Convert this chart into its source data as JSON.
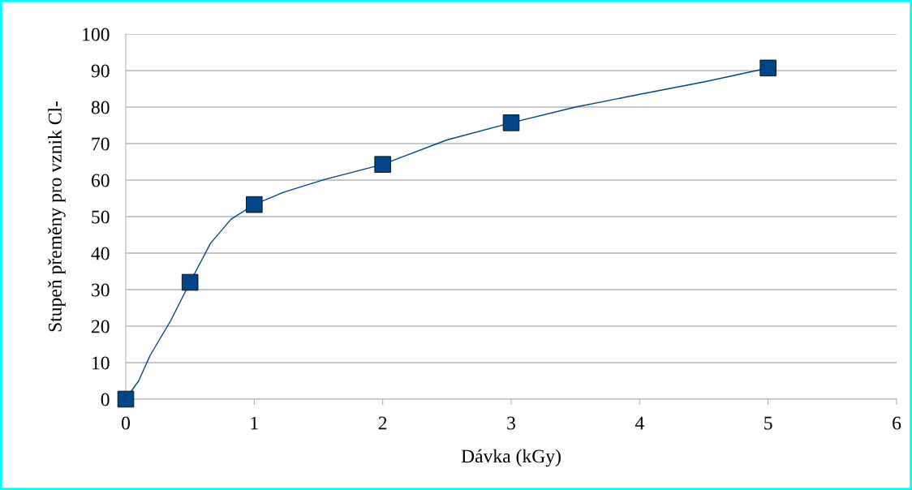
{
  "chart_data": {
    "type": "line",
    "xlabel": "Dávka (kGy)",
    "ylabel": "Stupeň přeměny pro vznik Cl-",
    "xlim": [
      0,
      6
    ],
    "xticks": [
      0,
      1,
      2,
      3,
      4,
      5,
      6
    ],
    "ylim": [
      0,
      100
    ],
    "yticks": [
      0,
      10,
      20,
      30,
      40,
      50,
      60,
      70,
      80,
      90,
      100
    ],
    "grid": "y",
    "legend": false,
    "series": [
      {
        "color": "#004586",
        "marker": "none",
        "line_style": "solid",
        "x": [
          0,
          0.1,
          0.19,
          0.35,
          0.5,
          0.66,
          0.82,
          1,
          1.23,
          1.55,
          2,
          2.5,
          3,
          3.5,
          4,
          4.5,
          5
        ],
        "values": [
          0,
          5,
          12,
          21.5,
          32,
          42.7,
          49.3,
          53.3,
          56.7,
          60.2,
          64.3,
          71,
          75.7,
          80,
          83.5,
          86.9,
          90.7
        ]
      },
      {
        "type": "scatter",
        "color": "#004586",
        "marker": "square",
        "x": [
          0,
          0.5,
          1,
          2,
          3,
          5
        ],
        "values": [
          0,
          32,
          53.3,
          64.3,
          75.7,
          90.7
        ]
      }
    ]
  }
}
